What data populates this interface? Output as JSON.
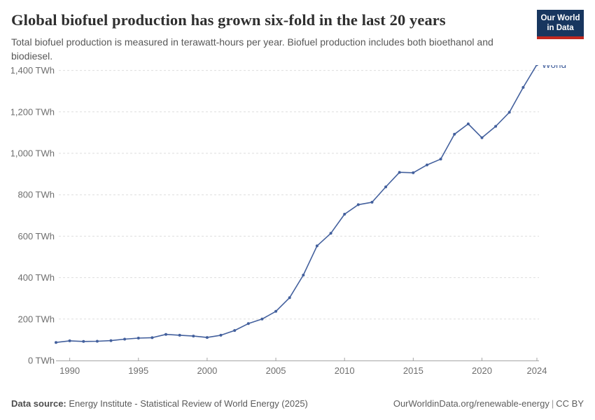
{
  "header": {
    "title": "Global biofuel production has grown six-fold in the last 20 years",
    "subtitle": "Total biofuel production is measured in terawatt-hours per year. Biofuel production includes both bioethanol and biodiesel.",
    "logo_line1": "Our World",
    "logo_line2": "in Data",
    "logo_bg_color": "#18365f",
    "logo_stripe_color": "#c2281f"
  },
  "footer": {
    "source_label": "Data source:",
    "source_text": " Energy Institute - Statistical Review of World Energy (2025)",
    "right_url": "OurWorldinData.org/renewable-energy",
    "right_separator": "|",
    "right_license": "CC BY"
  },
  "chart_data": {
    "type": "line",
    "title": "Global biofuel production has grown six-fold in the last 20 years",
    "ylabel": "",
    "xlabel": "",
    "unit": "TWh",
    "xlim": [
      1989,
      2024
    ],
    "ylim": [
      0,
      1400
    ],
    "grid": "horizontal-dashed",
    "legend_position": "end-of-line",
    "line_color": "#43609d",
    "grid_color": "#dedede",
    "axis_color": "#a5a5a5",
    "tick_text_color": "#6e6e6e",
    "y_ticks": [
      {
        "value": 0,
        "label": "0 TWh"
      },
      {
        "value": 200,
        "label": "200 TWh"
      },
      {
        "value": 400,
        "label": "400 TWh"
      },
      {
        "value": 600,
        "label": "600 TWh"
      },
      {
        "value": 800,
        "label": "800 TWh"
      },
      {
        "value": 1000,
        "label": "1,000 TWh"
      },
      {
        "value": 1200,
        "label": "1,200 TWh"
      },
      {
        "value": 1400,
        "label": "1,400 TWh"
      }
    ],
    "x_ticks": [
      {
        "value": 1990,
        "label": "1990"
      },
      {
        "value": 1995,
        "label": "1995"
      },
      {
        "value": 2000,
        "label": "2000"
      },
      {
        "value": 2005,
        "label": "2005"
      },
      {
        "value": 2010,
        "label": "2010"
      },
      {
        "value": 2015,
        "label": "2015"
      },
      {
        "value": 2020,
        "label": "2020"
      },
      {
        "value": 2024,
        "label": "2024"
      }
    ],
    "series": [
      {
        "name": "World",
        "color": "#43609d",
        "points": [
          [
            1989,
            87
          ],
          [
            1990,
            95
          ],
          [
            1991,
            92
          ],
          [
            1992,
            93
          ],
          [
            1993,
            96
          ],
          [
            1994,
            103
          ],
          [
            1995,
            108
          ],
          [
            1996,
            110
          ],
          [
            1997,
            126
          ],
          [
            1998,
            122
          ],
          [
            1999,
            118
          ],
          [
            2000,
            111
          ],
          [
            2001,
            122
          ],
          [
            2002,
            145
          ],
          [
            2003,
            178
          ],
          [
            2004,
            200
          ],
          [
            2005,
            237
          ],
          [
            2006,
            303
          ],
          [
            2007,
            412
          ],
          [
            2008,
            553
          ],
          [
            2009,
            614
          ],
          [
            2010,
            706
          ],
          [
            2011,
            752
          ],
          [
            2012,
            764
          ],
          [
            2013,
            838
          ],
          [
            2014,
            908
          ],
          [
            2015,
            906
          ],
          [
            2016,
            944
          ],
          [
            2017,
            972
          ],
          [
            2018,
            1092
          ],
          [
            2019,
            1142
          ],
          [
            2020,
            1075
          ],
          [
            2021,
            1130
          ],
          [
            2022,
            1198
          ],
          [
            2023,
            1318
          ],
          [
            2024,
            1428
          ]
        ]
      }
    ]
  }
}
